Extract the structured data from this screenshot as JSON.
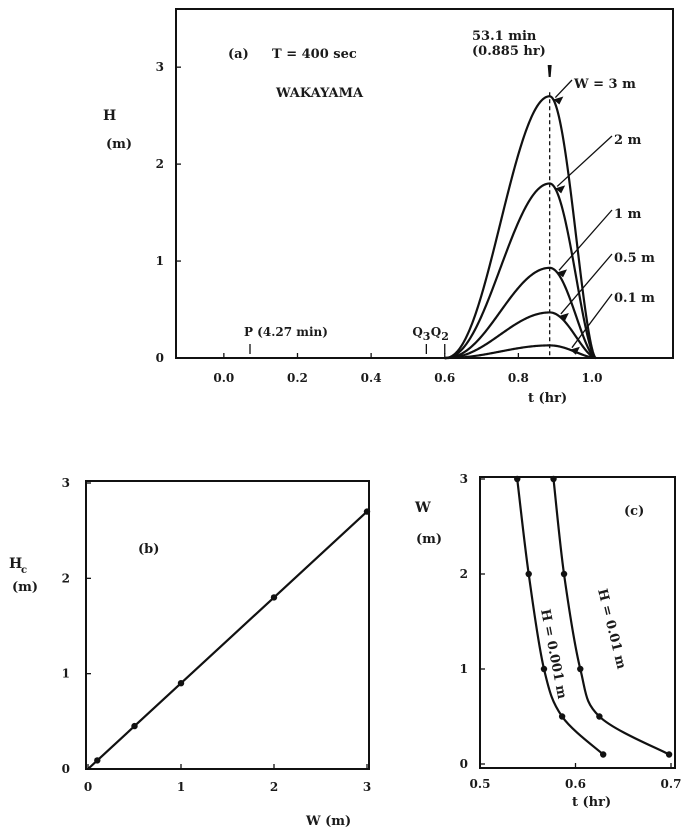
{
  "chart_data": [
    {
      "id": "a",
      "type": "line",
      "panel_label": "(a)",
      "condition_label": "T = 400 sec",
      "location_label": "WAKAYAMA",
      "xlabel": "t (hr)",
      "ylabel_top": "H",
      "ylabel_bottom": "(m)",
      "xlim": [
        -0.13,
        1.22
      ],
      "ylim": [
        0,
        3.6
      ],
      "xticks": [
        "0.0",
        "0.2",
        "0.4",
        "0.6",
        "0.8",
        "1.0"
      ],
      "xtick_values": [
        0.0,
        0.2,
        0.4,
        0.6,
        0.8,
        1.0
      ],
      "yticks": [
        "0",
        "1",
        "2",
        "3"
      ],
      "ytick_values": [
        0,
        1,
        2,
        3
      ],
      "peak_time_label": "53.1 min",
      "peak_time_sub": "(0.885 hr)",
      "peak_time": 0.885,
      "series": [
        {
          "name": "W = 3 m",
          "peak": 2.7
        },
        {
          "name": "2 m",
          "peak": 1.8
        },
        {
          "name": "1 m",
          "peak": 0.93
        },
        {
          "name": "0.5 m",
          "peak": 0.47
        },
        {
          "name": "0.1 m",
          "peak": 0.13
        }
      ],
      "curve_start": 0.6,
      "curve_end": 1.01,
      "markers": [
        {
          "text": "P (4.27 min)",
          "x": 0.071
        },
        {
          "text": "Q",
          "sub": "3",
          "x": 0.55
        },
        {
          "text": "Q",
          "sub": "2",
          "x": 0.6
        }
      ]
    },
    {
      "id": "b",
      "type": "line",
      "panel_label": "(b)",
      "xlabel": "W (m)",
      "ylabel_top": "H",
      "ylabel_sub": "c",
      "ylabel_bottom": "(m)",
      "xlim": [
        0,
        3
      ],
      "ylim": [
        0,
        3
      ],
      "xticks": [
        "0",
        "1",
        "2",
        "3"
      ],
      "yticks": [
        "0",
        "1",
        "2",
        "3"
      ],
      "x": [
        0.1,
        0.5,
        1,
        2,
        3
      ],
      "y": [
        0.09,
        0.45,
        0.9,
        1.8,
        2.7
      ]
    },
    {
      "id": "c",
      "type": "line",
      "panel_label": "(c)",
      "xlabel": "t (hr)",
      "ylabel_top": "W",
      "ylabel_bottom": "(m)",
      "xlim": [
        0.5,
        0.7
      ],
      "ylim": [
        0,
        3
      ],
      "xticks": [
        "0.5",
        "0.6",
        "0.7"
      ],
      "yticks": [
        "0",
        "1",
        "2",
        "3"
      ],
      "series": [
        {
          "name": "H = 0.001 m",
          "x": [
            0.539,
            0.551,
            0.567,
            0.586,
            0.629
          ],
          "y": [
            3,
            2,
            1,
            0.5,
            0.1
          ]
        },
        {
          "name": "H = 0.01 m",
          "x": [
            0.577,
            0.588,
            0.605,
            0.625,
            0.698
          ],
          "y": [
            3,
            2,
            1,
            0.5,
            0.1
          ]
        }
      ]
    }
  ]
}
